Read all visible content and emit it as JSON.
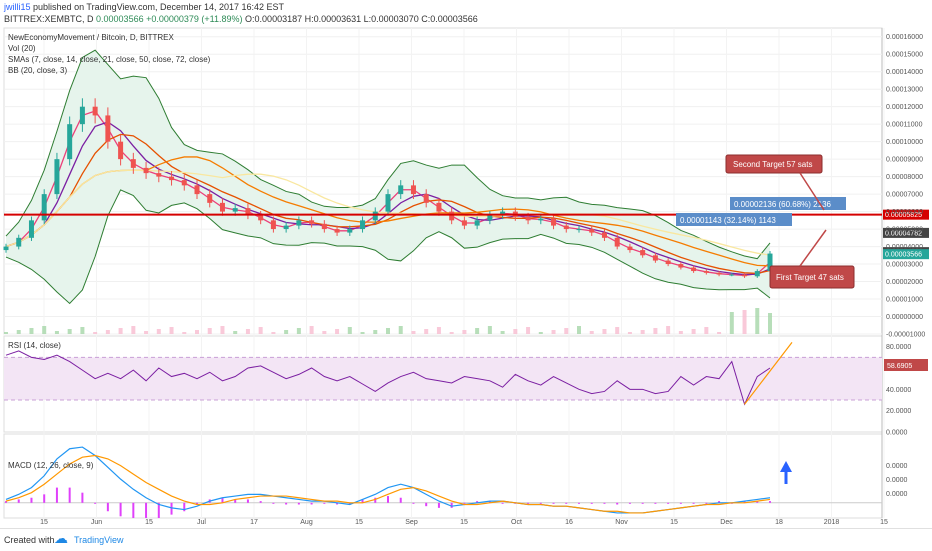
{
  "header": {
    "author": "jwilli15",
    "published": "published on TradingView.com, December 14, 2017 16:42 EST",
    "symbol": "BITTREX:XEMBTC, D",
    "open_close": "0.00003566",
    "change": "+0.00000379 (+11.89%)",
    "ohlc": "O:0.00003187 H:0.00003631 L:0.00003070 C:0.00003566"
  },
  "footer": {
    "created_with": "Created with",
    "brand": "TradingView"
  },
  "colors": {
    "up": "#26a69a",
    "down": "#ef5350",
    "bb": "#2e7d32",
    "bb_fill": "#e6f4ec",
    "rsi": "#7b1fa2",
    "rsi_band": "#f3e5f5",
    "macd": "#2196f3",
    "signal": "#ff9800",
    "hist": "#e040fb",
    "sma7": "#ec407a",
    "sma14": "#7b1fa2",
    "sma21": "#e65100",
    "sma50": "#f57c00",
    "sma72": "#f9e79f",
    "resistance": "#d50000",
    "annot_box": "#c04848",
    "measure": "#5b8dc9"
  },
  "chart_data": [
    {
      "type": "candlestick",
      "title": "NewEconomyMovement / Bitcoin, D, BITTREX",
      "legend": [
        "Vol (20)",
        "SMAs (7, close, 14, close, 21, close, 50, close, 72, close)",
        "BB (20, close, 3)"
      ],
      "ylim": [
        -1e-05,
        0.000165
      ],
      "y_ticks": [
        "0.00016000",
        "0.00015000",
        "0.00014000",
        "0.00013000",
        "0.00012000",
        "0.00011000",
        "0.00010000",
        "0.00009000",
        "0.00008000",
        "0.00007000",
        "0.00006000",
        "0.00005000",
        "0.00004000",
        "0.00003000",
        "0.00002000",
        "0.00001000",
        "0.00000000",
        "-0.00001000"
      ],
      "x_ticks": [
        "15",
        "Jun",
        "15",
        "Jul",
        "17",
        "Aug",
        "15",
        "Sep",
        "15",
        "Oct",
        "16",
        "Nov",
        "15",
        "Dec",
        "18",
        "2018",
        "15"
      ],
      "closes": [
        4e-05,
        4.5e-05,
        5.5e-05,
        7e-05,
        9e-05,
        0.00011,
        0.00012,
        0.000115,
        0.0001,
        9e-05,
        8.5e-05,
        8.2e-05,
        8e-05,
        7.8e-05,
        7.5e-05,
        7e-05,
        6.5e-05,
        6e-05,
        6.2e-05,
        5.8e-05,
        5.5e-05,
        5e-05,
        5.2e-05,
        5.5e-05,
        5.3e-05,
        5e-05,
        4.8e-05,
        5e-05,
        5.5e-05,
        6e-05,
        7e-05,
        7.5e-05,
        7e-05,
        6.5e-05,
        6e-05,
        5.5e-05,
        5.2e-05,
        5.5e-05,
        5.8e-05,
        6e-05,
        5.7e-05,
        5.5e-05,
        5.6e-05,
        5.2e-05,
        5e-05,
        5e-05,
        4.8e-05,
        4.5e-05,
        4e-05,
        3.8e-05,
        3.5e-05,
        3.2e-05,
        3e-05,
        2.8e-05,
        2.6e-05,
        2.5e-05,
        2.4e-05,
        2.4e-05,
        2.3e-05,
        2.6e-05,
        3.6e-05
      ],
      "resistance": 5.825e-05,
      "price_tags": [
        "0.00005825",
        "0.00004782",
        "0.00003682",
        "0.00003566"
      ],
      "measures": [
        {
          "label": "0.00001143 (32.14%) 1143"
        },
        {
          "label": "0.00002136 (60.68%) 2136"
        }
      ],
      "annotations": [
        "Second Target 57 sats",
        "First Target 47 sats"
      ]
    },
    {
      "type": "line",
      "title": "RSI (14, close)",
      "ylim": [
        0,
        90
      ],
      "y_ticks": [
        "80.0000",
        "60.0000",
        "40.0000",
        "20.0000",
        "0.0000"
      ],
      "band": [
        30,
        70
      ],
      "values": [
        72,
        76,
        70,
        68,
        72,
        66,
        58,
        50,
        55,
        50,
        58,
        48,
        60,
        52,
        55,
        50,
        56,
        48,
        52,
        60,
        62,
        56,
        50,
        54,
        60,
        52,
        48,
        52,
        45,
        38,
        46,
        52,
        56,
        50,
        48,
        46,
        52,
        50,
        48,
        42,
        54,
        48,
        44,
        52,
        46,
        40,
        36,
        38,
        48,
        40,
        40,
        36,
        38,
        52,
        44,
        52,
        50,
        66,
        26,
        52,
        60
      ],
      "last_label": "58.6905"
    },
    {
      "type": "line",
      "title": "MACD (12, 26, close, 9)",
      "y_ticks": [
        "0.0000",
        "0.0000",
        "0.0000"
      ],
      "macd": [
        0.2,
        0.5,
        0.9,
        1.6,
        2.6,
        3.2,
        3.3,
        2.8,
        2.1,
        1.4,
        0.8,
        0.3,
        -0.1,
        -0.3,
        -0.4,
        -0.2,
        0.1,
        0.3,
        0.4,
        0.5,
        0.5,
        0.4,
        0.3,
        0.2,
        0.1,
        0.1,
        0.0,
        -0.1,
        0.2,
        0.5,
        0.9,
        1.1,
        0.9,
        0.5,
        0.1,
        -0.2,
        -0.1,
        0.0,
        0.1,
        0.1,
        0.0,
        -0.1,
        -0.1,
        -0.2,
        -0.2,
        -0.3,
        -0.4,
        -0.5,
        -0.6,
        -0.6,
        -0.6,
        -0.5,
        -0.4,
        -0.3,
        -0.2,
        -0.1,
        0.0,
        0.0,
        0.1,
        0.2,
        0.3
      ],
      "signal": [
        0.1,
        0.3,
        0.6,
        1.1,
        1.7,
        2.3,
        2.7,
        2.8,
        2.6,
        2.2,
        1.7,
        1.2,
        0.8,
        0.4,
        0.1,
        -0.1,
        -0.1,
        0.0,
        0.2,
        0.3,
        0.4,
        0.4,
        0.4,
        0.3,
        0.2,
        0.1,
        0.1,
        0.0,
        0.0,
        0.2,
        0.5,
        0.8,
        0.9,
        0.7,
        0.4,
        0.1,
        -0.1,
        -0.1,
        0.0,
        0.1,
        0.0,
        -0.1,
        -0.1,
        -0.2,
        -0.2,
        -0.3,
        -0.4,
        -0.5,
        -0.5,
        -0.6,
        -0.6,
        -0.5,
        -0.4,
        -0.3,
        -0.2,
        -0.1,
        -0.1,
        0.0,
        0.0,
        0.1,
        0.2
      ]
    }
  ]
}
